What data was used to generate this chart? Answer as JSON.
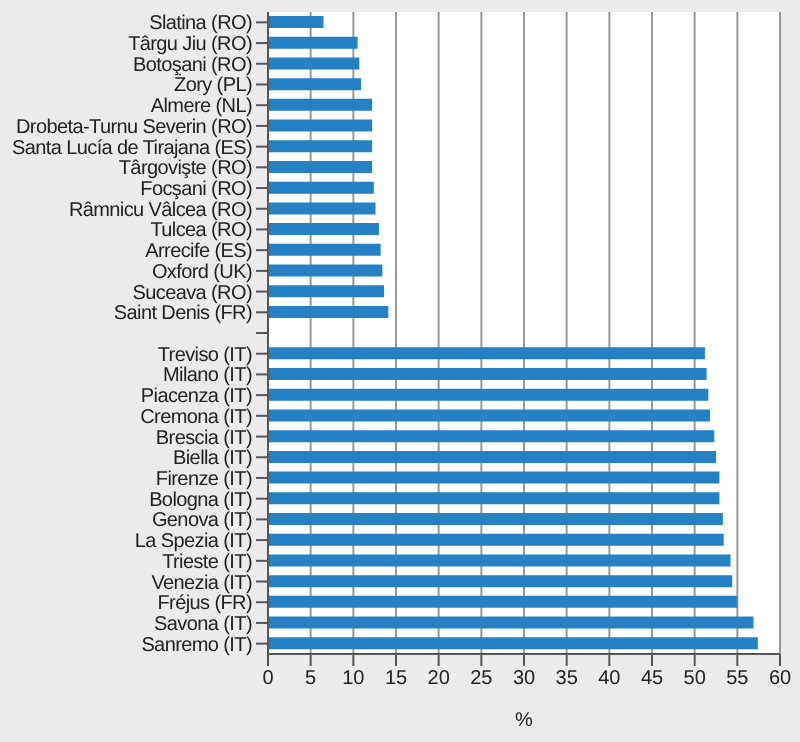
{
  "chart_data": {
    "type": "bar",
    "orientation": "horizontal",
    "xlabel": "%",
    "categories": [
      "Slatina (RO)",
      "Târgu Jiu (RO)",
      "Botoşani (RO)",
      "Żory (PL)",
      "Almere (NL)",
      "Drobeta-Turnu Severin (RO)",
      "Santa Lucía de Tirajana (ES)",
      "Târgovişte (RO)",
      "Focşani (RO)",
      "Râmnicu Vâlcea (RO)",
      "Tulcea (RO)",
      "Arrecife (ES)",
      "Oxford (UK)",
      "Suceava (RO)",
      "Saint Denis (FR)",
      null,
      "Treviso (IT)",
      "Milano (IT)",
      "Piacenza (IT)",
      "Cremona (IT)",
      "Brescia (IT)",
      "Biella (IT)",
      "Firenze (IT)",
      "Bologna (IT)",
      "Genova (IT)",
      "La Spezia (IT)",
      "Trieste (IT)",
      "Venezia (IT)",
      "Fréjus (FR)",
      "Savona (IT)",
      "Sanremo (IT)"
    ],
    "values": [
      6.5,
      10.5,
      10.7,
      10.9,
      12.2,
      12.2,
      12.2,
      12.2,
      12.4,
      12.6,
      13.0,
      13.2,
      13.4,
      13.6,
      14.1,
      null,
      51.2,
      51.4,
      51.6,
      51.8,
      52.3,
      52.5,
      52.9,
      52.9,
      53.3,
      53.4,
      54.2,
      54.4,
      55.0,
      56.9,
      57.4
    ],
    "color": "#2581c4",
    "xlim": [
      0,
      60
    ],
    "xticks": [
      0,
      5,
      10,
      15,
      20,
      25,
      30,
      35,
      40,
      45,
      50,
      55,
      60
    ],
    "grid": "x"
  }
}
